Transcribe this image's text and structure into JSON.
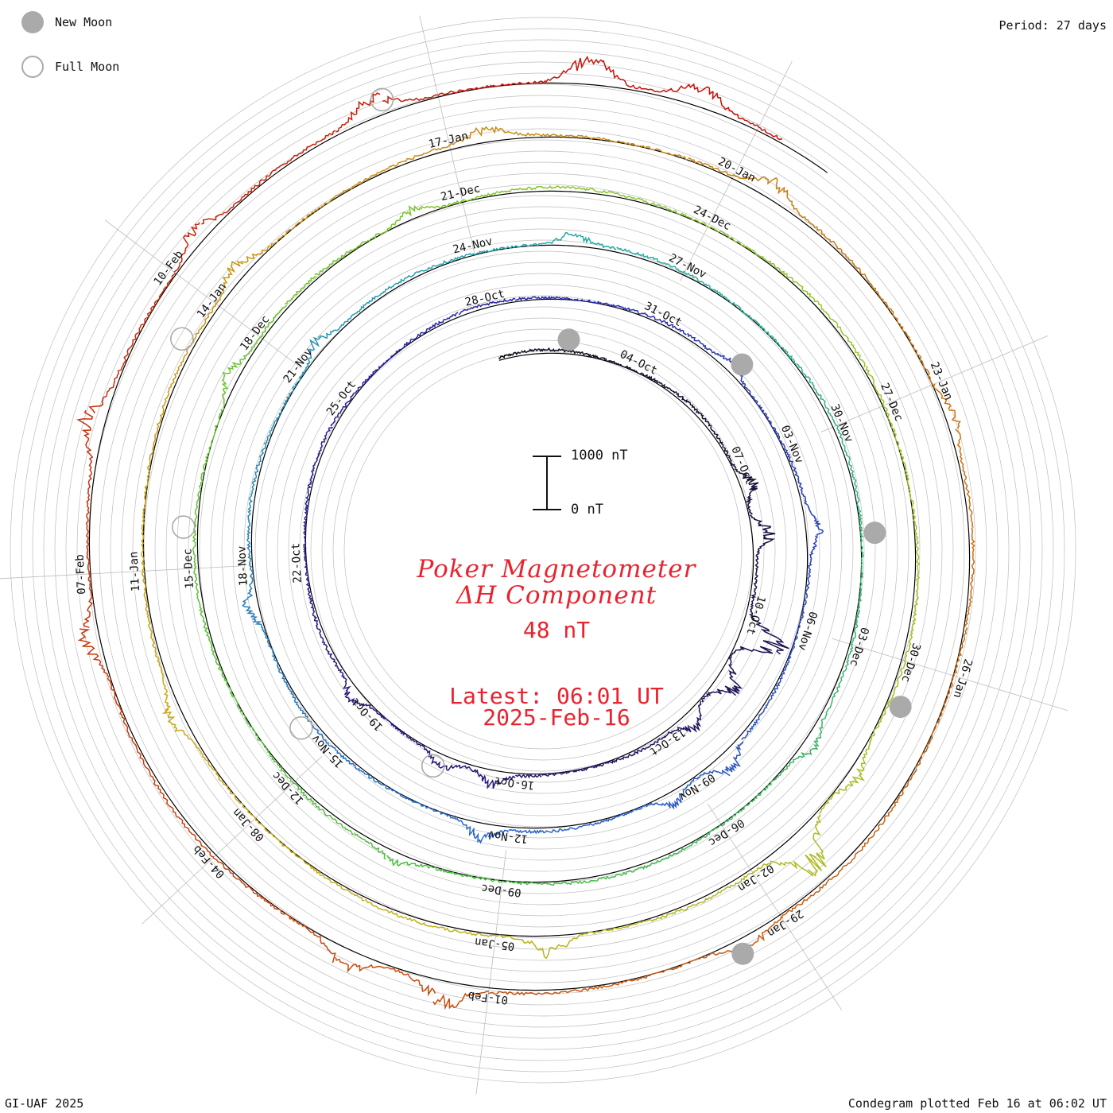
{
  "header": {
    "period_label": "Period: 27 days",
    "credit": "GI-UAF 2025",
    "plotted": "Condegram plotted Feb 16 at 06:02 UT"
  },
  "legend": {
    "new_moon": "New Moon",
    "full_moon": "Full Moon",
    "new_moon_color": "#aaaaaa",
    "full_moon_color": "#aaaaaa"
  },
  "scale": {
    "top_label": "1000 nT",
    "bottom_label": "0 nT"
  },
  "titles": {
    "line1": "Poker Magnetometer",
    "line2": "ΔH Component",
    "value": "48 nT",
    "latest": "Latest: 06:01 UT",
    "date": "2025-Feb-16"
  },
  "colors": {
    "title": "#e8232e",
    "grid": "#bdbdbd"
  },
  "chart_data": {
    "type": "condegram",
    "title": "Poker Magnetometer ΔH Component",
    "period_days": 27,
    "units": "nT",
    "scale_range": [
      0,
      1000
    ],
    "start_date": "2024-10-01",
    "end_date": "2025-02-16",
    "date_labels": [
      "04-Oct",
      "07-Oct",
      "10-Oct",
      "13-Oct",
      "16-Oct",
      "19-Oct",
      "22-Oct",
      "25-Oct",
      "28-Oct",
      "31-Oct",
      "03-Nov",
      "06-Nov",
      "09-Nov",
      "12-Nov",
      "15-Nov",
      "18-Nov",
      "21-Nov",
      "24-Nov",
      "27-Nov",
      "30-Nov",
      "03-Dec",
      "06-Dec",
      "09-Dec",
      "12-Dec",
      "15-Dec",
      "18-Dec",
      "21-Dec",
      "24-Dec",
      "27-Dec",
      "30-Dec",
      "02-Jan",
      "05-Jan",
      "08-Jan",
      "11-Jan",
      "14-Jan",
      "17-Jan",
      "20-Jan",
      "23-Jan",
      "26-Jan",
      "29-Jan",
      "01-Feb",
      "04-Feb",
      "07-Feb",
      "10-Feb"
    ],
    "new_moons": [
      "2024-10-02",
      "2024-11-01",
      "2024-12-01",
      "2024-12-30",
      "2025-01-29"
    ],
    "full_moons": [
      "2024-10-17",
      "2024-11-15",
      "2024-12-15",
      "2025-01-13",
      "2025-02-12"
    ],
    "disturbances": [
      {
        "date": "2024-10-07",
        "peak_nT": 380
      },
      {
        "date": "2024-10-08",
        "peak_nT": 450
      },
      {
        "date": "2024-10-10",
        "peak_nT": 1000
      },
      {
        "date": "2024-10-11",
        "peak_nT": 600
      },
      {
        "date": "2024-10-12",
        "peak_nT": 320
      },
      {
        "date": "2024-10-16",
        "peak_nT": 280
      },
      {
        "date": "2024-10-17",
        "peak_nT": 260
      },
      {
        "date": "2024-10-19",
        "peak_nT": 300
      },
      {
        "date": "2024-11-01",
        "peak_nT": 220
      },
      {
        "date": "2024-11-04",
        "peak_nT": 300
      },
      {
        "date": "2024-11-08",
        "peak_nT": 380
      },
      {
        "date": "2024-11-09",
        "peak_nT": 280
      },
      {
        "date": "2024-11-12",
        "peak_nT": 320
      },
      {
        "date": "2024-11-17",
        "peak_nT": 300
      },
      {
        "date": "2024-11-21",
        "peak_nT": 260
      },
      {
        "date": "2024-11-25",
        "peak_nT": 250
      },
      {
        "date": "2024-12-04",
        "peak_nT": 230
      },
      {
        "date": "2024-12-10",
        "peak_nT": 200
      },
      {
        "date": "2024-12-17",
        "peak_nT": 260
      },
      {
        "date": "2024-12-20",
        "peak_nT": 220
      },
      {
        "date": "2024-12-31",
        "peak_nT": 280
      },
      {
        "date": "2025-01-01",
        "peak_nT": 900
      },
      {
        "date": "2025-01-04",
        "peak_nT": 420
      },
      {
        "date": "2025-01-09",
        "peak_nT": 260
      },
      {
        "date": "2025-01-14",
        "peak_nT": 300
      },
      {
        "date": "2025-01-17",
        "peak_nT": 260
      },
      {
        "date": "2025-01-20",
        "peak_nT": 330
      },
      {
        "date": "2025-01-23",
        "peak_nT": 220
      },
      {
        "date": "2025-01-29",
        "peak_nT": 280
      },
      {
        "date": "2025-02-01",
        "peak_nT": 480
      },
      {
        "date": "2025-02-02",
        "peak_nT": 420
      },
      {
        "date": "2025-02-06",
        "peak_nT": 380
      },
      {
        "date": "2025-02-08",
        "peak_nT": 420
      },
      {
        "date": "2025-02-10",
        "peak_nT": 350
      },
      {
        "date": "2025-02-12",
        "peak_nT": 380
      },
      {
        "date": "2025-02-14",
        "peak_nT": 580
      },
      {
        "date": "2025-02-15",
        "peak_nT": 400
      }
    ]
  }
}
